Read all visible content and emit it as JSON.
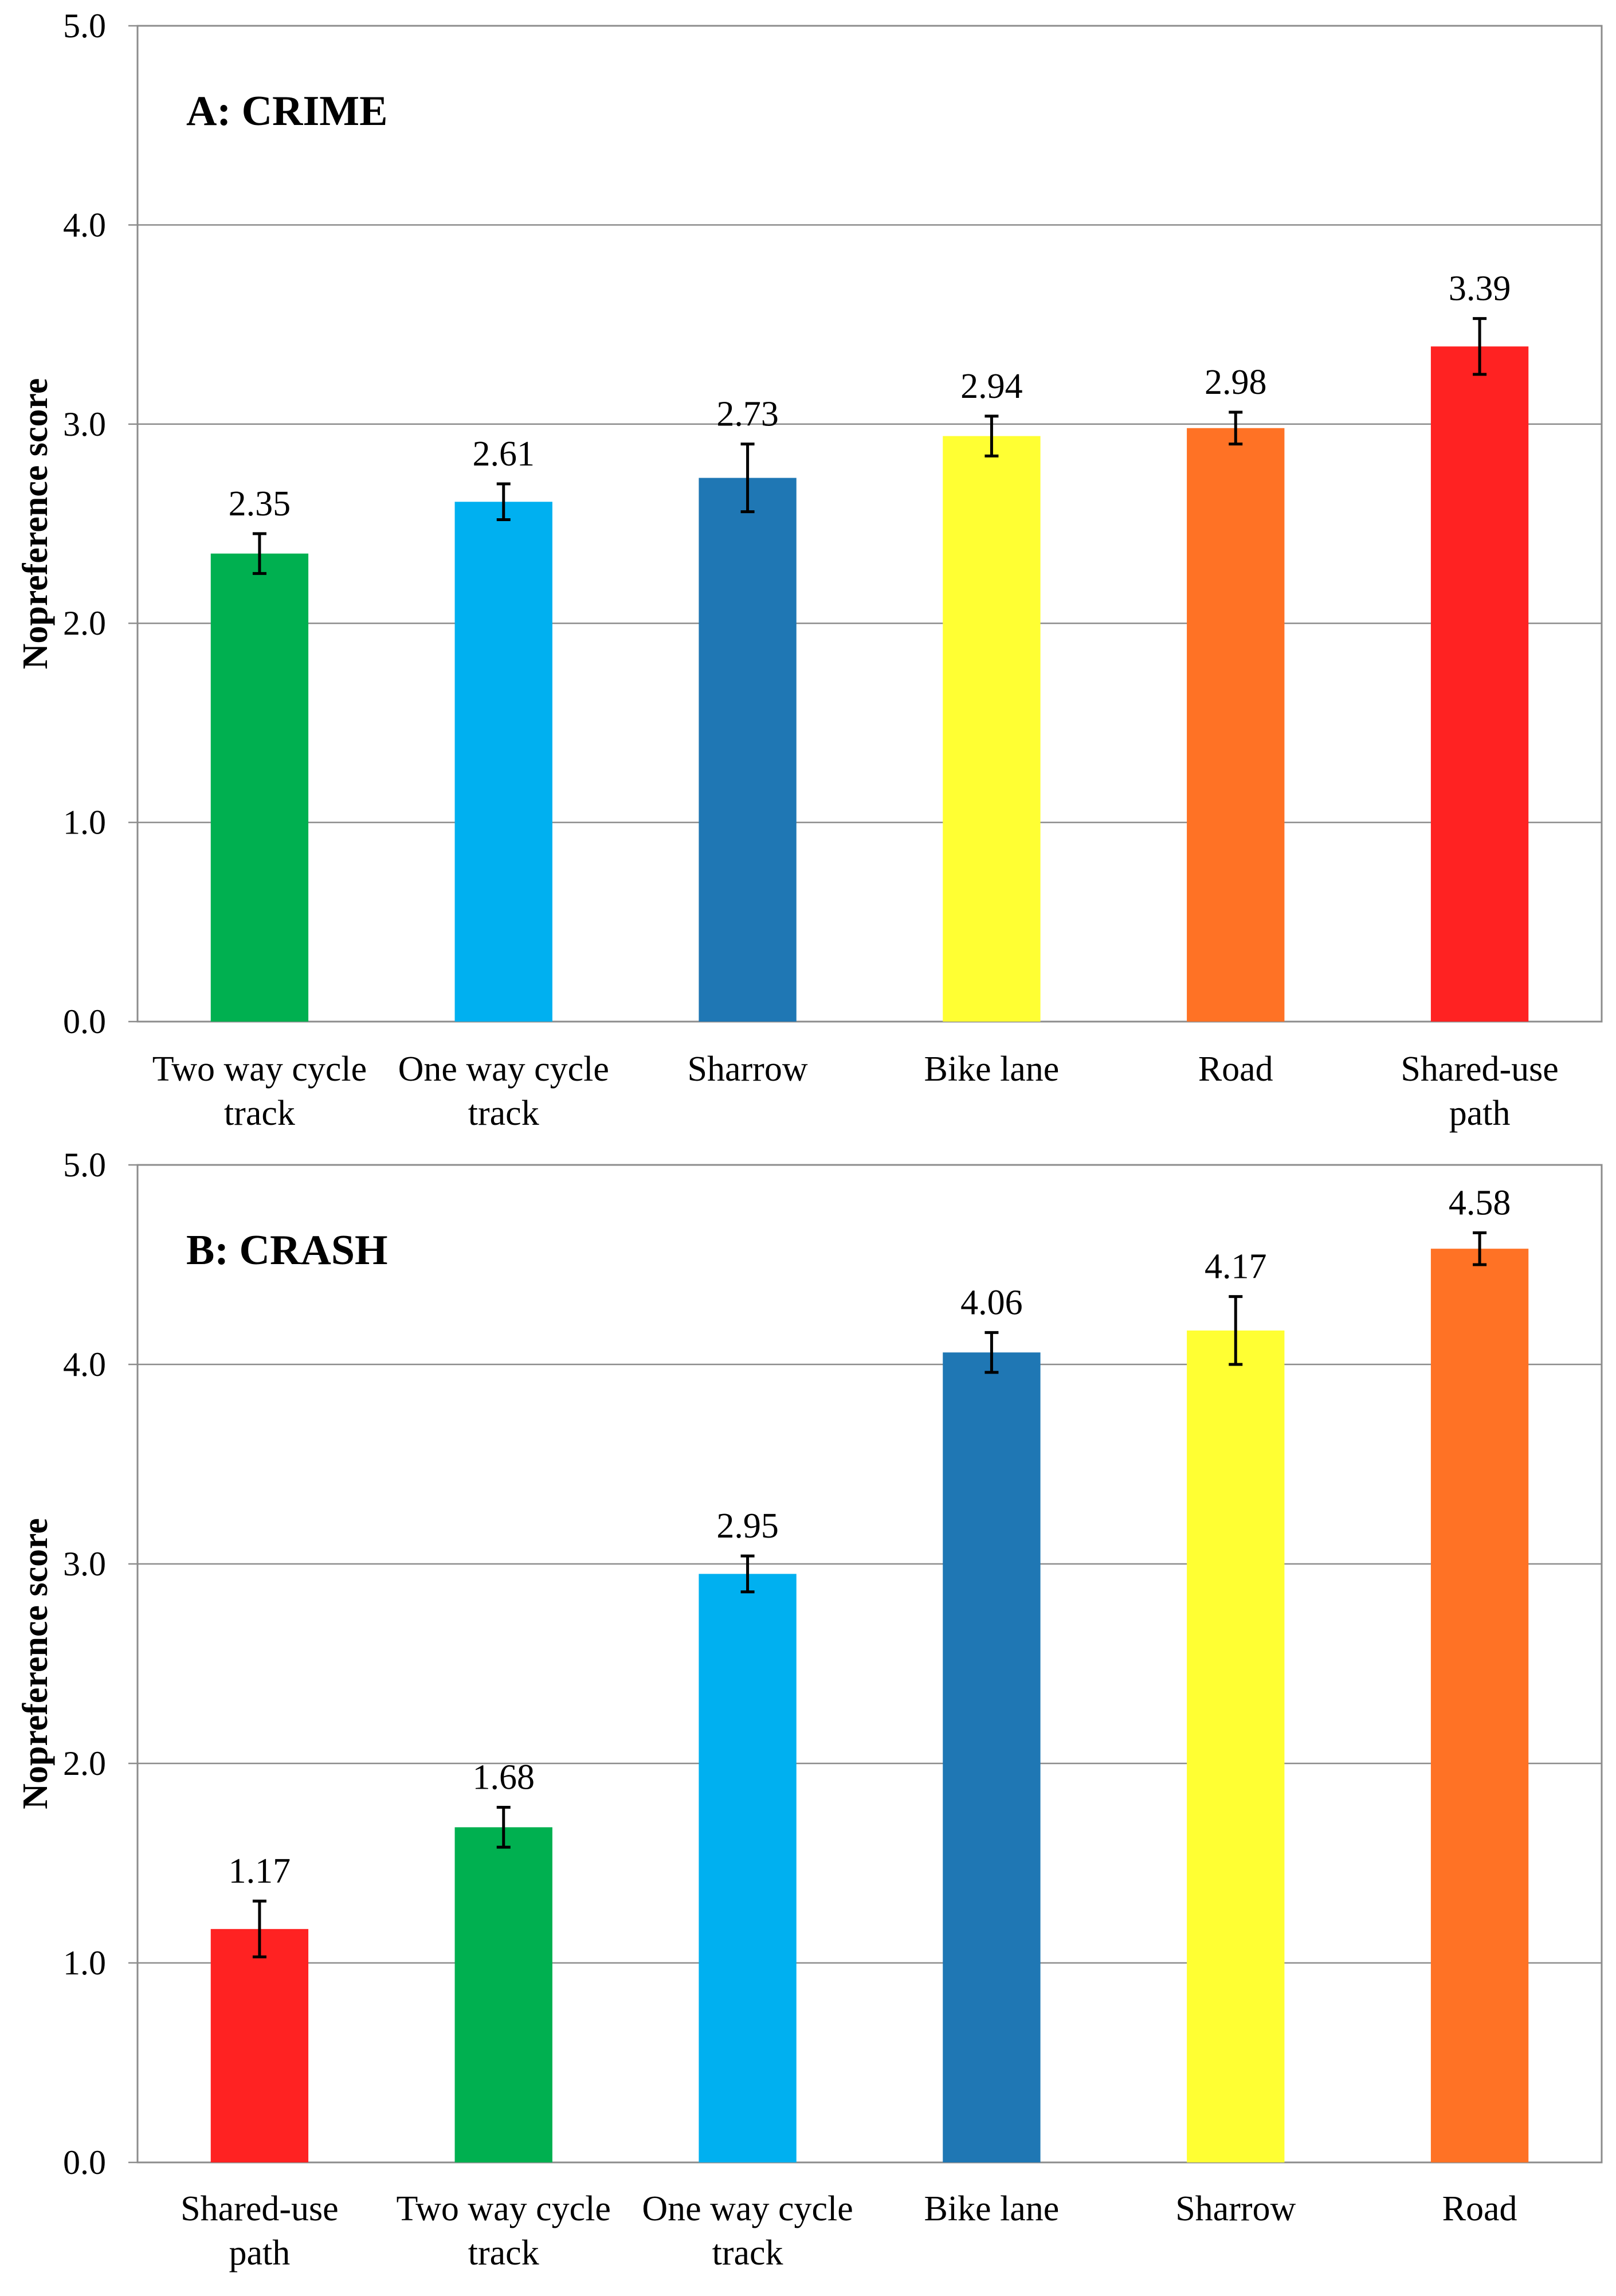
{
  "chart_data": [
    {
      "type": "bar",
      "title": "A: CRIME",
      "ylabel": "Nopreference score",
      "xlabel": "",
      "ylim": [
        0,
        5
      ],
      "yticks": [
        "0.0",
        "1.0",
        "2.0",
        "3.0",
        "4.0",
        "5.0"
      ],
      "grid": true,
      "categories": [
        [
          "Two way cycle",
          "track"
        ],
        [
          "One way cycle",
          "track"
        ],
        [
          "Sharrow"
        ],
        [
          "Bike lane"
        ],
        [
          "Road"
        ],
        [
          "Shared-use",
          "path"
        ]
      ],
      "values": [
        2.35,
        2.61,
        2.73,
        2.94,
        2.98,
        3.39
      ],
      "value_labels": [
        "2.35",
        "2.61",
        "2.73",
        "2.94",
        "2.98",
        "3.39"
      ],
      "errors": [
        0.1,
        0.09,
        0.17,
        0.1,
        0.08,
        0.14
      ],
      "colors": [
        "#00b050",
        "#00b0f0",
        "#1f77b4",
        "#ffff33",
        "#ff7225",
        "#ff2222"
      ]
    },
    {
      "type": "bar",
      "title": "B: CRASH",
      "ylabel": "Nopreference score",
      "xlabel": "",
      "ylim": [
        0,
        5
      ],
      "yticks": [
        "0.0",
        "1.0",
        "2.0",
        "3.0",
        "4.0",
        "5.0"
      ],
      "grid": true,
      "categories": [
        [
          "Shared-use",
          "path"
        ],
        [
          "Two way cycle",
          "track"
        ],
        [
          "One way cycle",
          "track"
        ],
        [
          "Bike lane"
        ],
        [
          "Sharrow"
        ],
        [
          "Road"
        ]
      ],
      "values": [
        1.17,
        1.68,
        2.95,
        4.06,
        4.17,
        4.58
      ],
      "value_labels": [
        "1.17",
        "1.68",
        "2.95",
        "4.06",
        "4.17",
        "4.58"
      ],
      "errors": [
        0.14,
        0.1,
        0.09,
        0.1,
        0.17,
        0.08
      ],
      "colors": [
        "#ff2222",
        "#00b050",
        "#00b0f0",
        "#1f77b4",
        "#ffff33",
        "#ff7225"
      ]
    }
  ]
}
